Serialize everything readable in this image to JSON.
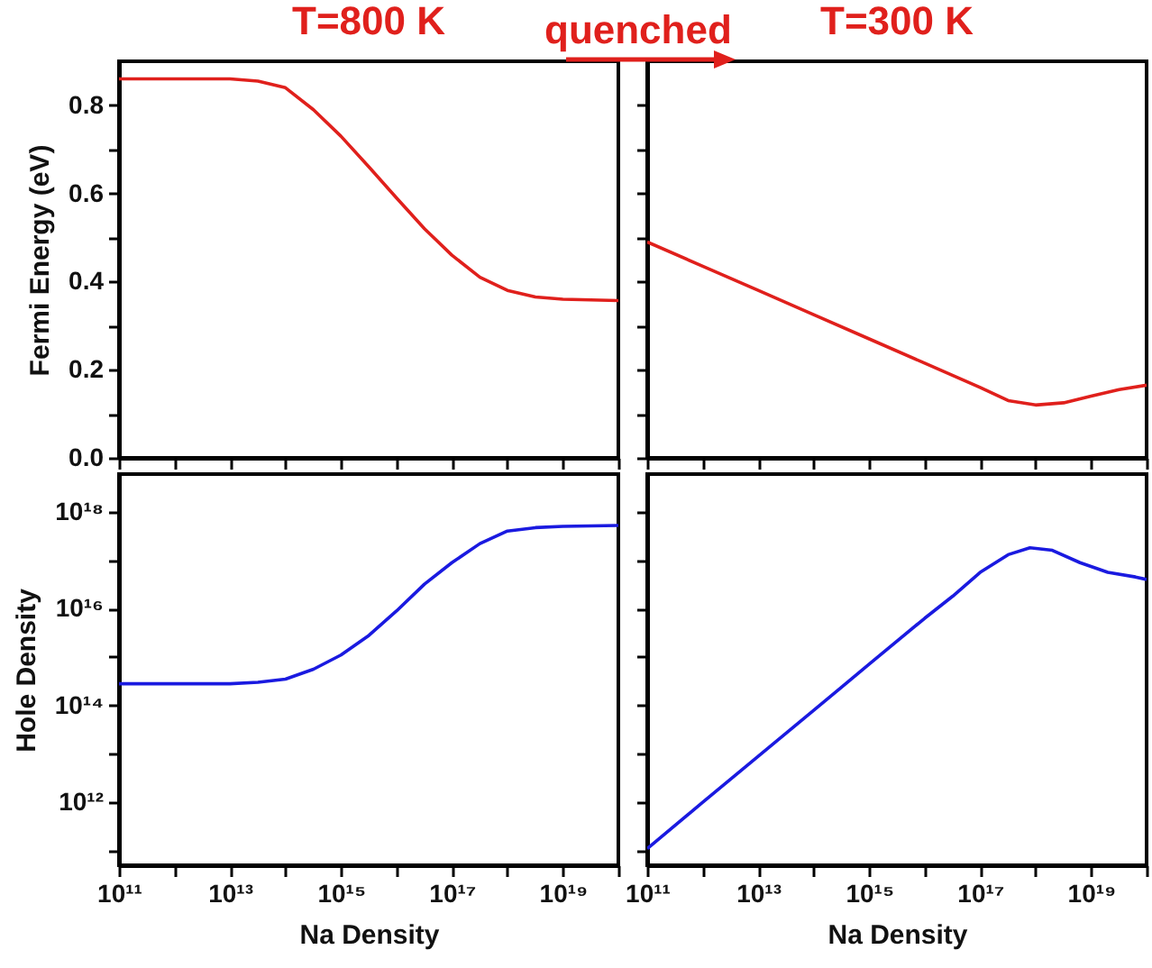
{
  "chart_data": [
    {
      "type": "line",
      "title": "T=800 K",
      "ylabel": "Fermi Energy (eV)",
      "log": "x",
      "tick_labels": "y",
      "line_style": "solid",
      "xlim": [
        100000000000.0,
        1e+20
      ],
      "ylim": [
        0,
        0.9
      ],
      "xticks": [
        {
          "value": 100000000000.0,
          "label": null
        },
        {
          "value": 1000000000000.0,
          "label": null
        },
        {
          "value": 10000000000000.0,
          "label": null
        },
        {
          "value": 100000000000000.0,
          "label": null
        },
        {
          "value": 1000000000000000.0,
          "label": null
        },
        {
          "value": 1e+16,
          "label": null
        },
        {
          "value": 1e+17,
          "label": null
        },
        {
          "value": 1e+18,
          "label": null
        },
        {
          "value": 1e+19,
          "label": null
        },
        {
          "value": 1e+20,
          "label": null
        }
      ],
      "yticks": [
        {
          "value": 0,
          "label": "0.0"
        },
        {
          "value": 0.1,
          "label": null
        },
        {
          "value": 0.2,
          "label": "0.2"
        },
        {
          "value": 0.3,
          "label": null
        },
        {
          "value": 0.4,
          "label": "0.4"
        },
        {
          "value": 0.5,
          "label": null
        },
        {
          "value": 0.6,
          "label": "0.6"
        },
        {
          "value": 0.7,
          "label": null
        },
        {
          "value": 0.8,
          "label": "0.8"
        }
      ],
      "series": [
        {
          "color": "#e0201c",
          "x": [
            100000000000.0,
            10000000000000.0,
            32000000000000.0,
            100000000000000.0,
            320000000000000.0,
            1000000000000000.0,
            3200000000000000.0,
            1e+16,
            3.2e+16,
            1e+17,
            3.2e+17,
            1e+18,
            3.2e+18,
            1e+19,
            1e+20
          ],
          "values": [
            0.86,
            0.86,
            0.855,
            0.84,
            0.79,
            0.73,
            0.66,
            0.59,
            0.52,
            0.46,
            0.41,
            0.38,
            0.365,
            0.36,
            0.357
          ]
        }
      ]
    },
    {
      "type": "line",
      "title": "T=300 K",
      "annotations": [
        "quenched"
      ],
      "log": "x",
      "tick_labels": false,
      "line_style": "solid",
      "xlim": [
        100000000000.0,
        1e+20
      ],
      "ylim": [
        0,
        0.9
      ],
      "xticks": [
        {
          "value": 100000000000.0,
          "label": null
        },
        {
          "value": 1000000000000.0,
          "label": null
        },
        {
          "value": 10000000000000.0,
          "label": null
        },
        {
          "value": 100000000000000.0,
          "label": null
        },
        {
          "value": 1000000000000000.0,
          "label": null
        },
        {
          "value": 1e+16,
          "label": null
        },
        {
          "value": 1e+17,
          "label": null
        },
        {
          "value": 1e+18,
          "label": null
        },
        {
          "value": 1e+19,
          "label": null
        },
        {
          "value": 1e+20,
          "label": null
        }
      ],
      "yticks": [
        {
          "value": 0,
          "label": null
        },
        {
          "value": 0.1,
          "label": null
        },
        {
          "value": 0.2,
          "label": null
        },
        {
          "value": 0.3,
          "label": null
        },
        {
          "value": 0.4,
          "label": null
        },
        {
          "value": 0.5,
          "label": null
        },
        {
          "value": 0.6,
          "label": null
        },
        {
          "value": 0.7,
          "label": null
        },
        {
          "value": 0.8,
          "label": null
        }
      ],
      "series": [
        {
          "color": "#e0201c",
          "x": [
            100000000000.0,
            1000000000000.0,
            10000000000000.0,
            100000000000000.0,
            1000000000000000.0,
            1e+16,
            1e+17,
            3.2e+17,
            1e+18,
            3.2e+18,
            1e+19,
            3.2e+19,
            1e+20
          ],
          "values": [
            0.49,
            0.435,
            0.38,
            0.325,
            0.27,
            0.215,
            0.16,
            0.13,
            0.12,
            0.125,
            0.14,
            0.155,
            0.165
          ]
        }
      ]
    },
    {
      "type": "line",
      "xlabel": "Na Density",
      "ylabel": "Hole Density",
      "log": "xy",
      "line_style": "solid",
      "xlim": [
        100000000000.0,
        1e+20
      ],
      "ylim": [
        50000000000.0,
        6e+18
      ],
      "xticks": [
        {
          "value": 100000000000.0,
          "label": "10¹¹"
        },
        {
          "value": 1000000000000.0,
          "label": null
        },
        {
          "value": 10000000000000.0,
          "label": "10¹³"
        },
        {
          "value": 100000000000000.0,
          "label": null
        },
        {
          "value": 1000000000000000.0,
          "label": "10¹⁵"
        },
        {
          "value": 1e+16,
          "label": null
        },
        {
          "value": 1e+17,
          "label": "10¹⁷"
        },
        {
          "value": 1e+18,
          "label": null
        },
        {
          "value": 1e+19,
          "label": "10¹⁹"
        },
        {
          "value": 1e+20,
          "label": null
        }
      ],
      "yticks": [
        {
          "value": 100000000000.0,
          "label": null
        },
        {
          "value": 1000000000000.0,
          "label": "10¹²"
        },
        {
          "value": 10000000000000.0,
          "label": null
        },
        {
          "value": 100000000000000.0,
          "label": "10¹⁴"
        },
        {
          "value": 1000000000000000.0,
          "label": null
        },
        {
          "value": 1e+16,
          "label": "10¹⁶"
        },
        {
          "value": 1e+17,
          "label": null
        },
        {
          "value": 1e+18,
          "label": "10¹⁸"
        }
      ],
      "series": [
        {
          "color": "#1a1ae0",
          "x": [
            100000000000.0,
            10000000000000.0,
            32000000000000.0,
            100000000000000.0,
            320000000000000.0,
            1000000000000000.0,
            3200000000000000.0,
            1e+16,
            3.2e+16,
            1e+17,
            3.2e+17,
            1e+18,
            3.2e+18,
            1e+19,
            1e+20
          ],
          "values": [
            280000000000000.0,
            280000000000000.0,
            300000000000000.0,
            350000000000000.0,
            560000000000000.0,
            1100000000000000.0,
            2800000000000000.0,
            8900000000000000.0,
            3.2e+16,
            8.9e+16,
            2.2e+17,
            4e+17,
            4.7e+17,
            5e+17,
            5.2e+17
          ]
        }
      ]
    },
    {
      "type": "line",
      "xlabel": "Na Density",
      "log": "xy",
      "tick_labels": "x",
      "line_style": "solid",
      "xlim": [
        100000000000.0,
        1e+20
      ],
      "ylim": [
        50000000000.0,
        6e+18
      ],
      "xticks": [
        {
          "value": 100000000000.0,
          "label": "10¹¹"
        },
        {
          "value": 1000000000000.0,
          "label": null
        },
        {
          "value": 10000000000000.0,
          "label": "10¹³"
        },
        {
          "value": 100000000000000.0,
          "label": null
        },
        {
          "value": 1000000000000000.0,
          "label": "10¹⁵"
        },
        {
          "value": 1e+16,
          "label": null
        },
        {
          "value": 1e+17,
          "label": "10¹⁷"
        },
        {
          "value": 1e+18,
          "label": null
        },
        {
          "value": 1e+19,
          "label": "10¹⁹"
        },
        {
          "value": 1e+20,
          "label": null
        }
      ],
      "yticks": [
        {
          "value": 100000000000.0,
          "label": null
        },
        {
          "value": 1000000000000.0,
          "label": null
        },
        {
          "value": 10000000000000.0,
          "label": null
        },
        {
          "value": 100000000000000.0,
          "label": null
        },
        {
          "value": 1000000000000000.0,
          "label": null
        },
        {
          "value": 1e+16,
          "label": null
        },
        {
          "value": 1e+17,
          "label": null
        },
        {
          "value": 1e+18,
          "label": null
        }
      ],
      "series": [
        {
          "color": "#1a1ae0",
          "x": [
            100000000000.0,
            1000000000000.0,
            10000000000000.0,
            100000000000000.0,
            1000000000000000.0,
            1e+16,
            3.2e+16,
            1e+17,
            3.2e+17,
            7.9e+17,
            2e+18,
            6.3e+18,
            2e+19,
            6.3e+19,
            1e+20
          ],
          "values": [
            110000000000.0,
            1000000000000.0,
            8900000000000.0,
            79000000000000.0,
            710000000000000.0,
            6300000000000000.0,
            1.8e+16,
            5.6e+16,
            1.3e+17,
            1.8e+17,
            1.6e+17,
            8.9e+16,
            5.6e+16,
            4.5e+16,
            4e+16
          ]
        }
      ]
    }
  ]
}
